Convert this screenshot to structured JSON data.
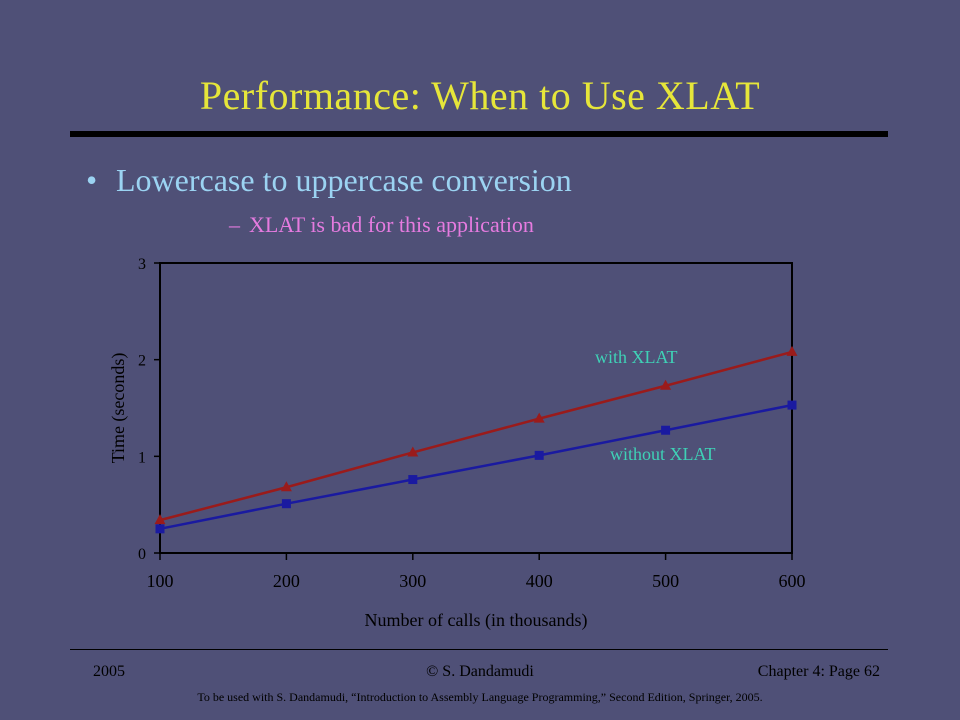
{
  "slide": {
    "title": "Performance: When to Use XLAT",
    "bullet": "Lowercase to uppercase conversion",
    "bullet_marker": "•",
    "sub_bullet": "XLAT is bad for this application",
    "sub_marker": "–"
  },
  "footer": {
    "year": "2005",
    "author": "© S. Dandamudi",
    "page": "Chapter 4: Page 62",
    "note": "To be used with S. Dandamudi, “Introduction to Assembly Language Programming,” Second Edition, Springer, 2005."
  },
  "chart_data": {
    "type": "line",
    "x": [
      100,
      200,
      300,
      400,
      500,
      600
    ],
    "xticks": [
      "100",
      "200",
      "300",
      "400",
      "500",
      "600"
    ],
    "yticks": [
      "0",
      "1",
      "2",
      "3"
    ],
    "xlabel": "Number of calls (in thousands)",
    "ylabel": "Time (seconds)",
    "xlim": [
      100,
      600
    ],
    "ylim": [
      0,
      3
    ],
    "grid": false,
    "series": [
      {
        "name": "with XLAT",
        "values": [
          0.34,
          0.68,
          1.04,
          1.39,
          1.73,
          2.08
        ],
        "color": "#9a1b1b",
        "marker": "triangle"
      },
      {
        "name": "without XLAT",
        "values": [
          0.25,
          0.51,
          0.76,
          1.01,
          1.27,
          1.53
        ],
        "color": "#1a1aa0",
        "marker": "square"
      }
    ],
    "label_color": "#3fd1b6",
    "plot_background": "#4f5077"
  }
}
